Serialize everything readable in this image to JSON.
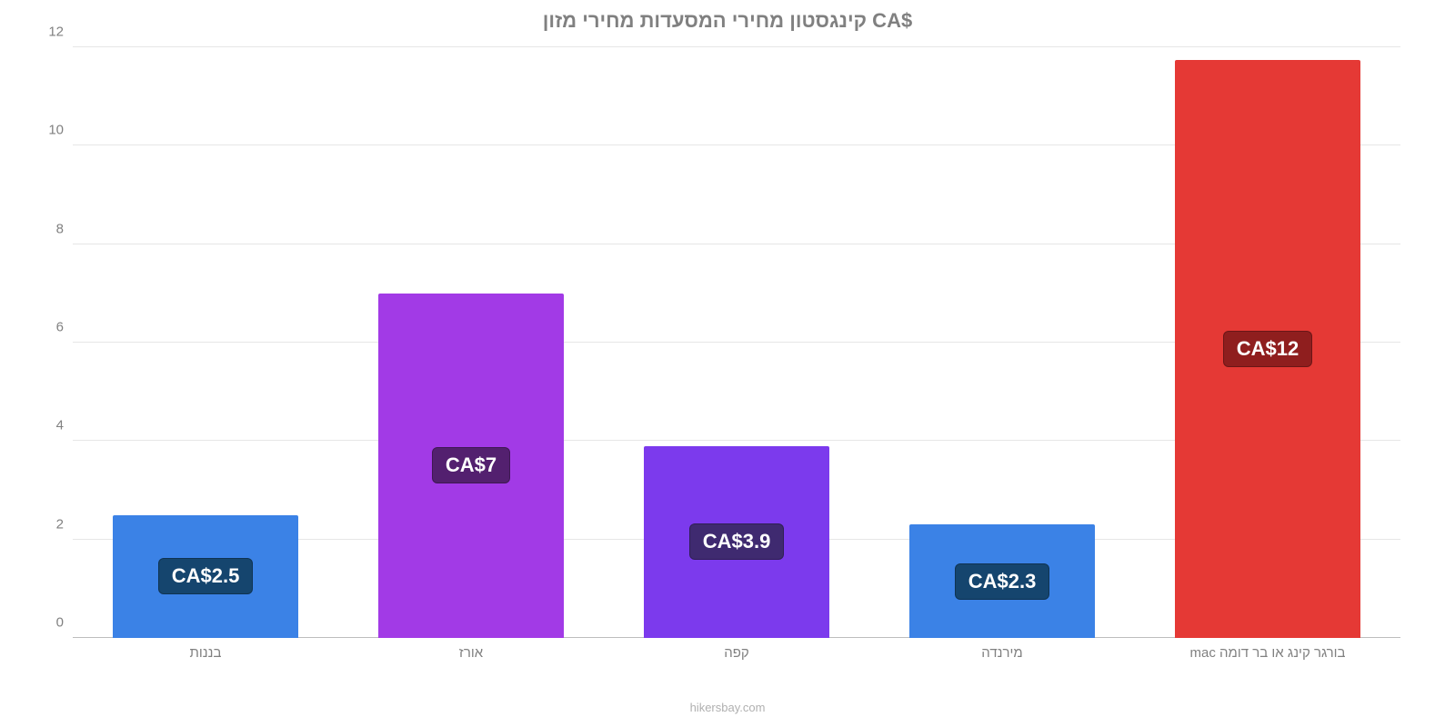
{
  "chart": {
    "type": "bar",
    "title": "קינגסטון מחירי המסעדות מחירי מזון CA$",
    "title_color": "#808080",
    "title_fontsize": 22,
    "background_color": "#ffffff",
    "grid_color": "#e6e6e6",
    "axis_text_color": "#808080",
    "ylim": [
      0,
      12
    ],
    "ytick_step": 2,
    "yticks": [
      0,
      2,
      4,
      6,
      8,
      10,
      12
    ],
    "bar_width_pct": 70,
    "value_label_fontsize": 22,
    "axis_label_fontsize": 15,
    "categories": [
      "בורגר קינג או בר דומה mac",
      "מירנדה",
      "קפה",
      "אורז",
      "בננות"
    ],
    "values": [
      11.75,
      2.3,
      3.9,
      7.0,
      2.5
    ],
    "value_labels": [
      "CA$12",
      "CA$2.3",
      "CA$3.9",
      "CA$7",
      "CA$2.5"
    ],
    "bar_colors": [
      "#e53935",
      "#3b82e6",
      "#7c3aed",
      "#a23ae6",
      "#3b82e6"
    ],
    "label_bg_colors": [
      "#8f1e1e",
      "#15456e",
      "#3f2a70",
      "#53206f",
      "#15456e"
    ],
    "attribution": "hikersbay.com"
  }
}
